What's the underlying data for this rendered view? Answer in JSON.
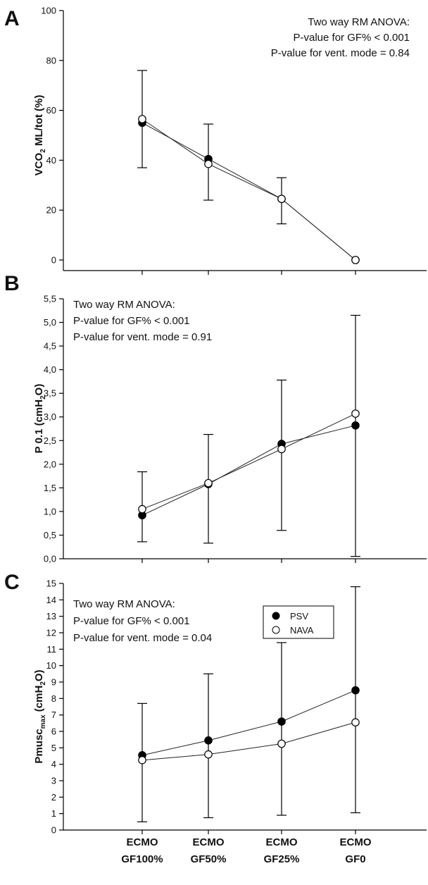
{
  "x_categories": [
    {
      "line1": "ECMO",
      "line2": "GF100%"
    },
    {
      "line1": "ECMO",
      "line2": "GF50%"
    },
    {
      "line1": "ECMO",
      "line2": "GF25%"
    },
    {
      "line1": "ECMO",
      "line2": "GF0"
    }
  ],
  "legend": [
    {
      "label": "PSV",
      "marker": "filled-circle"
    },
    {
      "label": "NAVA",
      "marker": "open-circle"
    }
  ],
  "colors": {
    "psv": "#000000",
    "nava": "#ffffff",
    "line": "#222222"
  },
  "chart_data": [
    {
      "type": "line",
      "panel_label": "A",
      "ylabel": {
        "main": "VCO",
        "sub": "2",
        "rest": " ML/tot (%)"
      },
      "ylim": [
        0,
        100
      ],
      "yticks": [
        "0",
        "20",
        "40",
        "60",
        "80",
        "100"
      ],
      "annotation": [
        "Two way RM ANOVA:",
        "P-value for GF% < 0.001",
        "P-value for vent. mode = 0.84"
      ],
      "series": [
        {
          "name": "PSV",
          "values": [
            55,
            40.5,
            24.5,
            0
          ]
        },
        {
          "name": "NAVA",
          "values": [
            56.5,
            38.5,
            24.5,
            0
          ]
        }
      ],
      "error_bars": [
        [
          37,
          76
        ],
        [
          24,
          54.5
        ],
        [
          14.5,
          33
        ],
        null
      ]
    },
    {
      "type": "line",
      "panel_label": "B",
      "ylabel": {
        "main": "P 0.1 (cmH",
        "sub": "2",
        "rest": "O)"
      },
      "ylim": [
        0,
        5.5
      ],
      "yticks": [
        "0,0",
        "0,5",
        "1,0",
        "1,5",
        "2,0",
        "2,5",
        "3,0",
        "3,5",
        "4,0",
        "4,5",
        "5,0",
        "5,5"
      ],
      "annotation": [
        "Two way RM ANOVA:",
        "P-value for GF% < 0.001",
        "P-value for vent. mode = 0.91"
      ],
      "series": [
        {
          "name": "PSV",
          "values": [
            0.92,
            1.58,
            2.43,
            2.82
          ]
        },
        {
          "name": "NAVA",
          "values": [
            1.05,
            1.6,
            2.32,
            3.07
          ]
        }
      ],
      "error_bars": [
        [
          0.36,
          1.84
        ],
        [
          0.33,
          2.63
        ],
        [
          0.6,
          3.78
        ],
        [
          0.05,
          5.15
        ]
      ]
    },
    {
      "type": "line",
      "panel_label": "C",
      "ylabel": {
        "main": "Pmusc",
        "sub": "max",
        "rest": " (cmH",
        "sub2": "2",
        "rest2": "O)"
      },
      "ylim": [
        0,
        15
      ],
      "yticks": [
        "0",
        "1",
        "2",
        "3",
        "4",
        "5",
        "6",
        "7",
        "8",
        "9",
        "10",
        "11",
        "12",
        "13",
        "14",
        "15"
      ],
      "annotation": [
        "Two way RM ANOVA:",
        "P-value for GF% < 0.001",
        "P-value for vent. mode = 0.04"
      ],
      "series": [
        {
          "name": "PSV",
          "values": [
            4.55,
            5.45,
            6.6,
            8.5
          ]
        },
        {
          "name": "NAVA",
          "values": [
            4.25,
            4.6,
            5.25,
            6.55
          ]
        }
      ],
      "error_bars": [
        [
          0.5,
          7.7
        ],
        [
          0.75,
          9.5
        ],
        [
          0.9,
          11.4
        ],
        [
          1.05,
          14.8
        ]
      ]
    }
  ]
}
